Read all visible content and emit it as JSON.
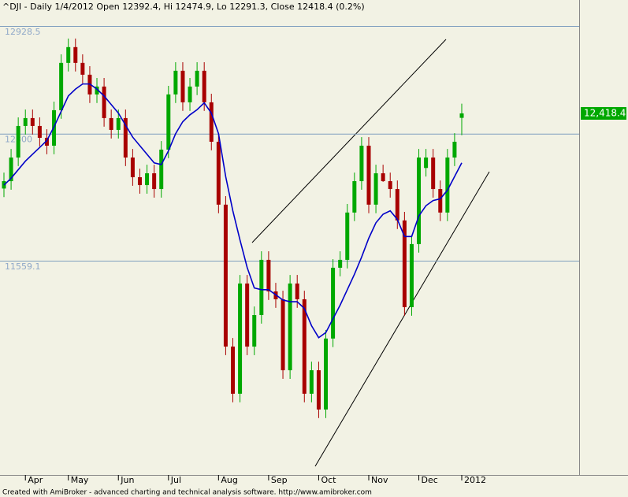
{
  "chart_data": {
    "type": "candlestick",
    "title": "^DJI - Daily 1/4/2012 Open 12392.4, Hi 12474.9, Lo 12291.3, Close 12418.4 (0.2%)",
    "footer": "Created with AmiBroker - advanced charting and technical analysis software. http://www.amibroker.com",
    "categories": [
      null,
      null,
      null,
      "Apr",
      null,
      null,
      null,
      null,
      null,
      "May",
      null,
      null,
      null,
      null,
      null,
      null,
      "Jun",
      null,
      null,
      null,
      null,
      null,
      null,
      "Jul",
      null,
      null,
      null,
      null,
      null,
      null,
      "Aug",
      null,
      null,
      null,
      null,
      null,
      null,
      "Sep",
      null,
      null,
      null,
      null,
      null,
      null,
      "Oct",
      null,
      null,
      null,
      null,
      null,
      null,
      "Nov",
      null,
      null,
      null,
      null,
      null,
      null,
      "Dec",
      null,
      null,
      null,
      null,
      null,
      "2012"
    ],
    "open": [
      11980,
      12023,
      12161,
      12345,
      12391,
      12345,
      12276,
      12230,
      12437,
      12713,
      12805,
      12713,
      12644,
      12529,
      12575,
      12391,
      12322,
      12391,
      12161,
      12046,
      12000,
      12069,
      11977,
      12207,
      12529,
      12667,
      12483,
      12575,
      12667,
      12483,
      12253,
      11886,
      11058,
      10783,
      11426,
      11058,
      11242,
      11564,
      11380,
      11334,
      10920,
      11426,
      11334,
      10783,
      10920,
      10691,
      11105,
      11518,
      11564,
      11840,
      12023,
      12230,
      11886,
      12069,
      12023,
      11977,
      11794,
      11288,
      11656,
      12100,
      12161,
      11977,
      11840,
      12161,
      12392.4
    ],
    "high": [
      12073,
      12211,
      12395,
      12441,
      12441,
      12395,
      12326,
      12487,
      12763,
      12855,
      12855,
      12763,
      12694,
      12625,
      12625,
      12441,
      12441,
      12441,
      12211,
      12096,
      12119,
      12119,
      12257,
      12579,
      12717,
      12717,
      12625,
      12717,
      12717,
      12533,
      12303,
      11936,
      11108,
      11476,
      11476,
      11292,
      11614,
      11614,
      11430,
      11384,
      11476,
      11476,
      11384,
      10970,
      10970,
      11155,
      11568,
      11614,
      11890,
      12073,
      12280,
      12280,
      12119,
      12119,
      12073,
      12027,
      11844,
      11706,
      12211,
      12211,
      12211,
      12027,
      12211,
      12303,
      12474.9
    ],
    "low": [
      11930,
      11973,
      12111,
      12295,
      12295,
      12226,
      12180,
      12180,
      12387,
      12663,
      12663,
      12594,
      12479,
      12479,
      12341,
      12272,
      12272,
      12111,
      11996,
      11950,
      11950,
      11927,
      11927,
      12157,
      12479,
      12433,
      12433,
      12525,
      12433,
      12203,
      11836,
      11008,
      10733,
      10733,
      11008,
      11008,
      11192,
      11330,
      11284,
      10870,
      10870,
      11284,
      10733,
      10733,
      10641,
      10641,
      11055,
      11468,
      11514,
      11790,
      11973,
      11836,
      11836,
      12019,
      11927,
      11744,
      11238,
      11238,
      11606,
      12050,
      11927,
      11790,
      11790,
      12111,
      12291.3
    ],
    "close": [
      12023,
      12161,
      12345,
      12391,
      12345,
      12276,
      12230,
      12437,
      12713,
      12805,
      12713,
      12644,
      12529,
      12575,
      12391,
      12322,
      12391,
      12161,
      12046,
      12000,
      12069,
      11977,
      12207,
      12529,
      12667,
      12483,
      12575,
      12667,
      12483,
      12253,
      11886,
      11058,
      10783,
      11426,
      11058,
      11242,
      11564,
      11380,
      11334,
      10920,
      11426,
      11334,
      10783,
      10920,
      10691,
      11105,
      11518,
      11564,
      11840,
      12023,
      12230,
      11886,
      12069,
      12023,
      11977,
      11794,
      11288,
      11656,
      12161,
      12161,
      11977,
      11840,
      12161,
      12253,
      12418.4
    ],
    "up_color": "#00a800",
    "down_color": "#a80000",
    "moving_average": {
      "color": "#0000c8",
      "values": [
        12000,
        12040,
        12090,
        12140,
        12180,
        12220,
        12260,
        12340,
        12430,
        12520,
        12560,
        12590,
        12590,
        12560,
        12520,
        12470,
        12420,
        12350,
        12280,
        12230,
        12180,
        12130,
        12120,
        12200,
        12300,
        12370,
        12410,
        12440,
        12480,
        12420,
        12300,
        12050,
        11850,
        11680,
        11520,
        11400,
        11390,
        11390,
        11360,
        11330,
        11320,
        11320,
        11280,
        11180,
        11110,
        11140,
        11220,
        11300,
        11390,
        11480,
        11580,
        11690,
        11780,
        11830,
        11850,
        11800,
        11700,
        11700,
        11820,
        11880,
        11910,
        11920,
        11970,
        12050,
        12130
      ]
    },
    "last_price": {
      "value": 12418.4,
      "label": "12,418.4",
      "color": "#00a800"
    },
    "ylim": [
      10323,
      12988
    ],
    "yticks": [
      12928.5,
      {
        "value": 12300,
        "label": "12300"
      },
      11559.1
    ],
    "grid": true
  }
}
